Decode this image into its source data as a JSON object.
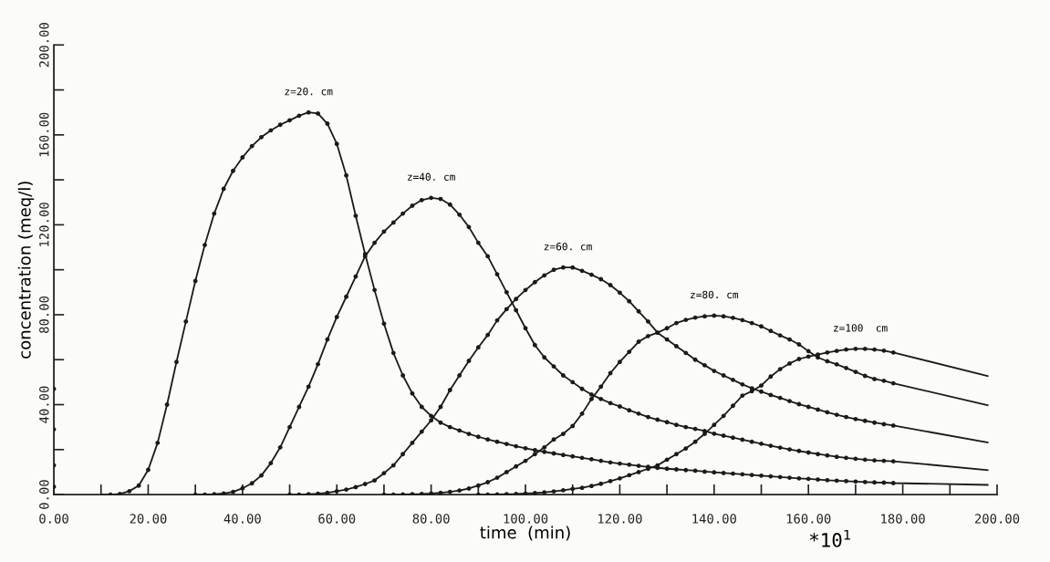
{
  "chart_data": {
    "type": "line",
    "xlabel": "time  (min)",
    "ylabel": "concentration (meq/l)",
    "xlim": [
      0,
      200
    ],
    "ylim": [
      0,
      200
    ],
    "xticks": [
      {
        "value": 0,
        "label": "0.00"
      },
      {
        "value": 10,
        "label": null
      },
      {
        "value": 20,
        "label": "20.00"
      },
      {
        "value": 30,
        "label": null
      },
      {
        "value": 40,
        "label": "40.00"
      },
      {
        "value": 50,
        "label": null
      },
      {
        "value": 60,
        "label": "60.00"
      },
      {
        "value": 70,
        "label": null
      },
      {
        "value": 80,
        "label": "80.00"
      },
      {
        "value": 90,
        "label": null
      },
      {
        "value": 100,
        "label": "100.00"
      },
      {
        "value": 110,
        "label": null
      },
      {
        "value": 120,
        "label": "120.00"
      },
      {
        "value": 130,
        "label": null
      },
      {
        "value": 140,
        "label": "140.00"
      },
      {
        "value": 150,
        "label": null
      },
      {
        "value": 160,
        "label": "160.00"
      },
      {
        "value": 170,
        "label": null
      },
      {
        "value": 180,
        "label": "180.00"
      },
      {
        "value": 190,
        "label": null
      },
      {
        "value": 200,
        "label": "200.00"
      }
    ],
    "yticks": [
      {
        "value": 0,
        "label": "0.00"
      },
      {
        "value": 20,
        "label": null
      },
      {
        "value": 40,
        "label": "40.00"
      },
      {
        "value": 60,
        "label": null
      },
      {
        "value": 80,
        "label": "80.00"
      },
      {
        "value": 100,
        "label": null
      },
      {
        "value": 120,
        "label": "120.00"
      },
      {
        "value": 140,
        "label": null
      },
      {
        "value": 160,
        "label": "160.00"
      },
      {
        "value": 180,
        "label": null
      },
      {
        "value": 200,
        "label": "200.00"
      }
    ],
    "grid": false,
    "annotations": [
      {
        "text": "z=20. cm",
        "x": 54,
        "y": 170
      },
      {
        "text": "z=40. cm",
        "x": 80,
        "y": 132
      },
      {
        "text": "z=60. cm",
        "x": 109,
        "y": 101
      },
      {
        "text": "z=80. cm",
        "x": 140,
        "y": 79.6
      },
      {
        "text": "z=100  cm",
        "x": 171,
        "y": 64.8
      },
      "*10$^{1}$"
    ],
    "series": [
      {
        "color": "#1a1a1a",
        "x": [
          10,
          12,
          14,
          16,
          18,
          20,
          22,
          24,
          26,
          28,
          30,
          32,
          34,
          36,
          38,
          40,
          42,
          44,
          46,
          48,
          50,
          52,
          54,
          56,
          58,
          60,
          62,
          64,
          66,
          68,
          70,
          72,
          74,
          76,
          78,
          80,
          82,
          84,
          86,
          88,
          90,
          92,
          94,
          96,
          98,
          100,
          102,
          104,
          106,
          108,
          110,
          112,
          114,
          116,
          118,
          120,
          122,
          124,
          126,
          128,
          130,
          132,
          134,
          136,
          138,
          140,
          142,
          144,
          146,
          148,
          150,
          152,
          154,
          156,
          158,
          160,
          162,
          164,
          166,
          168,
          170,
          172,
          174,
          176,
          178,
          198
        ],
        "values": [
          0,
          0,
          0.3,
          1.5,
          4,
          11,
          23,
          40,
          59,
          77,
          95,
          111,
          125,
          136,
          144,
          150,
          155,
          159,
          162,
          164.5,
          166.5,
          168.5,
          170,
          169.5,
          165,
          156,
          142,
          124,
          107,
          91,
          76,
          63,
          53,
          45,
          39,
          35,
          32,
          30,
          28.5,
          27,
          25.7,
          24.5,
          23.5,
          22.5,
          21.5,
          20.6,
          19.8,
          19,
          18.3,
          17.6,
          17,
          16.3,
          15.7,
          15,
          14.3,
          13.8,
          13.3,
          12.8,
          12.3,
          11.9,
          11.5,
          11.2,
          10.9,
          10.6,
          10.2,
          9.9,
          9.6,
          9.3,
          9,
          8.7,
          8.4,
          8.1,
          7.8,
          7.5,
          7.2,
          7,
          6.7,
          6.4,
          6.2,
          6,
          5.8,
          5.6,
          5.4,
          5.3,
          5.1,
          4.3
        ]
      },
      {
        "type": "scatter",
        "color": "#1a1a1a",
        "marker": "circle",
        "x": [
          12,
          14,
          16,
          18,
          20,
          22,
          24,
          26,
          28,
          30,
          32,
          34,
          36,
          38,
          40,
          42,
          44,
          46,
          48,
          50,
          52,
          54,
          56,
          58,
          60,
          62,
          64,
          66,
          68,
          70,
          72,
          74,
          76,
          78,
          80,
          82,
          84,
          86,
          88,
          90,
          92,
          94,
          96,
          98,
          100,
          102,
          104,
          106,
          108,
          110,
          112,
          114,
          116,
          118,
          120,
          122,
          124,
          126,
          128,
          130,
          132,
          134,
          136,
          138,
          140,
          142,
          144,
          146,
          148,
          150,
          152,
          154,
          156,
          158,
          160,
          162,
          164,
          166,
          168,
          170,
          172,
          174,
          176,
          178
        ],
        "values": [
          0,
          0.3,
          1.5,
          4,
          11,
          23,
          40,
          59,
          77,
          95,
          111,
          125,
          136,
          144,
          150,
          155,
          159,
          162,
          164.5,
          166.5,
          168.5,
          170,
          169.5,
          165,
          156,
          142,
          124,
          107,
          91,
          76,
          63,
          53,
          45,
          39,
          35,
          32,
          30,
          28.5,
          27,
          25.7,
          24.5,
          23.5,
          22.5,
          21.5,
          20.6,
          19.8,
          19,
          18.3,
          17.6,
          17,
          16.3,
          15.7,
          15,
          14.3,
          13.8,
          13.3,
          12.8,
          12.3,
          11.9,
          11.5,
          11.2,
          10.9,
          10.6,
          10.2,
          9.9,
          9.6,
          9.3,
          9,
          8.7,
          8.4,
          8.1,
          7.8,
          7.5,
          7.2,
          7,
          6.7,
          6.4,
          6.2,
          6,
          5.8,
          5.6,
          5.4,
          5.3,
          5.1
        ]
      },
      {
        "color": "#1a1a1a",
        "x": [
          30,
          32,
          34,
          36,
          38,
          40,
          42,
          44,
          46,
          48,
          50,
          52,
          54,
          56,
          58,
          60,
          62,
          64,
          66,
          68,
          70,
          72,
          74,
          76,
          78,
          80,
          82,
          84,
          86,
          88,
          90,
          92,
          94,
          96,
          98,
          100,
          102,
          104,
          106,
          108,
          110,
          112,
          114,
          116,
          118,
          120,
          122,
          124,
          126,
          128,
          130,
          132,
          134,
          136,
          138,
          140,
          142,
          144,
          146,
          148,
          150,
          152,
          154,
          156,
          158,
          160,
          162,
          164,
          166,
          168,
          170,
          172,
          174,
          176,
          178,
          198
        ],
        "values": [
          0,
          0,
          0.2,
          0.5,
          1.2,
          2.8,
          5,
          8.5,
          14,
          21,
          30,
          39,
          48,
          58,
          69,
          79,
          88,
          97,
          106,
          112,
          117,
          121,
          125,
          128.5,
          131,
          132,
          131.5,
          129,
          124.5,
          119,
          112,
          106,
          98,
          90,
          82,
          74,
          66.5,
          61,
          57,
          53,
          50,
          47,
          44.5,
          42.5,
          40.7,
          39.2,
          37.5,
          36,
          34.5,
          33.3,
          32.2,
          31,
          30,
          29.2,
          28.3,
          27.1,
          26.2,
          25.3,
          24.4,
          23.5,
          22.6,
          21.7,
          20.9,
          20.1,
          19.4,
          18.7,
          18,
          17.4,
          16.8,
          16.3,
          15.9,
          15.5,
          15.2,
          15,
          14.8,
          10.9
        ]
      },
      {
        "type": "scatter",
        "color": "#1a1a1a",
        "marker": "circle",
        "x": [
          30,
          32,
          34,
          36,
          38,
          40,
          42,
          44,
          46,
          48,
          50,
          52,
          54,
          56,
          58,
          60,
          62,
          64,
          66,
          68,
          70,
          72,
          74,
          76,
          78,
          80,
          82,
          84,
          86,
          88,
          90,
          92,
          94,
          96,
          98,
          100,
          102,
          104,
          106,
          108,
          110,
          112,
          114,
          116,
          118,
          120,
          122,
          124,
          126,
          128,
          130,
          132,
          134,
          136,
          138,
          140,
          142,
          144,
          146,
          148,
          150,
          152,
          154,
          156,
          158,
          160,
          162,
          164,
          166,
          168,
          170,
          172,
          174,
          176,
          178
        ],
        "values": [
          0,
          0,
          0.2,
          0.5,
          1.2,
          2.8,
          5,
          8.5,
          14,
          21,
          30,
          39,
          48,
          58,
          69,
          79,
          88,
          97,
          106,
          112,
          117,
          121,
          125,
          128.5,
          131,
          132,
          131.5,
          129,
          124.5,
          119,
          112,
          106,
          98,
          90,
          82,
          74,
          66.5,
          61,
          57,
          53,
          50,
          47,
          44.5,
          42.5,
          40.7,
          39.2,
          37.5,
          36,
          34.5,
          33.3,
          32.2,
          31,
          30,
          29.2,
          28.3,
          27.1,
          26.2,
          25.3,
          24.4,
          23.5,
          22.6,
          21.7,
          20.9,
          20.1,
          19.4,
          18.7,
          18,
          17.4,
          16.8,
          16.3,
          15.9,
          15.5,
          15.2,
          15,
          14.8
        ]
      },
      {
        "color": "#1a1a1a",
        "x": [
          50,
          52,
          54,
          56,
          58,
          60,
          62,
          64,
          66,
          68,
          70,
          72,
          74,
          76,
          78,
          80,
          82,
          84,
          86,
          88,
          90,
          92,
          94,
          96,
          98,
          100,
          102,
          104,
          106,
          108,
          110,
          112,
          114,
          116,
          118,
          120,
          122,
          124,
          126,
          128,
          130,
          132,
          134,
          136,
          138,
          140,
          142,
          144,
          146,
          148,
          150,
          152,
          154,
          156,
          158,
          160,
          162,
          164,
          166,
          168,
          170,
          172,
          174,
          176,
          178,
          198
        ],
        "values": [
          0,
          0,
          0.2,
          0.4,
          0.8,
          1.5,
          2.2,
          3.3,
          4.7,
          6.3,
          9.5,
          13,
          18,
          23,
          28,
          33,
          39,
          46.5,
          53,
          59.5,
          65.5,
          71,
          77.5,
          82.5,
          87,
          91,
          94.5,
          97.5,
          100,
          101,
          101,
          99.5,
          97.8,
          95.8,
          93.2,
          89.8,
          86,
          81.5,
          77,
          72,
          69,
          66,
          63,
          60,
          57.5,
          55,
          53,
          51,
          49,
          47.3,
          45.8,
          44.3,
          43,
          41.6,
          40.2,
          39,
          37.8,
          36.6,
          35.5,
          34.5,
          33.6,
          32.8,
          32,
          31.3,
          30.7,
          23.2
        ]
      },
      {
        "type": "scatter",
        "color": "#1a1a1a",
        "marker": "circle",
        "x": [
          50,
          52,
          54,
          56,
          58,
          60,
          62,
          64,
          66,
          68,
          70,
          72,
          74,
          76,
          78,
          80,
          82,
          84,
          86,
          88,
          90,
          92,
          94,
          96,
          98,
          100,
          102,
          104,
          106,
          108,
          110,
          112,
          114,
          116,
          118,
          120,
          122,
          124,
          126,
          128,
          130,
          132,
          134,
          136,
          138,
          140,
          142,
          144,
          146,
          148,
          150,
          152,
          154,
          156,
          158,
          160,
          162,
          164,
          166,
          168,
          170,
          172,
          174,
          176,
          178
        ],
        "values": [
          0,
          0,
          0.2,
          0.4,
          0.8,
          1.5,
          2.2,
          3.3,
          4.7,
          6.3,
          9.5,
          13,
          18,
          23,
          28,
          33,
          39,
          46.5,
          53,
          59.5,
          65.5,
          71,
          77.5,
          82.5,
          87,
          91,
          94.5,
          97.5,
          100,
          101,
          101,
          99.5,
          97.8,
          95.8,
          93.2,
          89.8,
          86,
          81.5,
          77,
          72,
          69,
          66,
          63,
          60,
          57.5,
          55,
          53,
          51,
          49,
          47.3,
          45.8,
          44.3,
          43,
          41.6,
          40.2,
          39,
          37.8,
          36.6,
          35.5,
          34.5,
          33.6,
          32.8,
          32,
          31.3,
          30.7
        ]
      },
      {
        "color": "#1a1a1a",
        "x": [
          70,
          72,
          74,
          76,
          78,
          80,
          82,
          84,
          86,
          88,
          90,
          92,
          94,
          96,
          98,
          100,
          102,
          104,
          106,
          108,
          110,
          112,
          114,
          116,
          118,
          120,
          122,
          124,
          126,
          128,
          130,
          132,
          134,
          136,
          138,
          140,
          142,
          144,
          146,
          148,
          150,
          152,
          154,
          156,
          158,
          160,
          162,
          164,
          166,
          168,
          170,
          172,
          174,
          176,
          178,
          198
        ],
        "values": [
          0,
          0,
          0.1,
          0.2,
          0.3,
          0.5,
          0.8,
          1.2,
          1.8,
          2.7,
          4,
          5.5,
          7.5,
          10,
          12.5,
          15,
          18,
          21,
          24.5,
          27,
          30.5,
          36,
          42.5,
          48,
          54,
          59,
          63.5,
          68,
          70.5,
          72,
          74,
          76.3,
          77.7,
          78.7,
          79.3,
          79.6,
          79.3,
          78.6,
          77.6,
          76.3,
          74.8,
          72.8,
          70.8,
          69,
          66.8,
          63.8,
          61,
          59.3,
          57.9,
          56.3,
          54.6,
          52.8,
          51.4,
          50.6,
          49.5,
          39.7
        ]
      },
      {
        "type": "scatter",
        "color": "#1a1a1a",
        "marker": "circle",
        "x": [
          70,
          72,
          74,
          76,
          78,
          80,
          82,
          84,
          86,
          88,
          90,
          92,
          94,
          96,
          98,
          100,
          102,
          104,
          106,
          108,
          110,
          112,
          114,
          116,
          118,
          120,
          122,
          124,
          126,
          128,
          130,
          132,
          134,
          136,
          138,
          140,
          142,
          144,
          146,
          148,
          150,
          152,
          154,
          156,
          158,
          160,
          162,
          164,
          166,
          168,
          170,
          172,
          174,
          176,
          178
        ],
        "values": [
          0,
          0,
          0.1,
          0.2,
          0.3,
          0.5,
          0.8,
          1.2,
          1.8,
          2.7,
          4,
          5.5,
          7.5,
          10,
          12.5,
          15,
          18,
          21,
          24.5,
          27,
          30.5,
          36,
          42.5,
          48,
          54,
          59,
          63.5,
          68,
          70.5,
          72,
          74,
          76.3,
          77.7,
          78.7,
          79.3,
          79.6,
          79.3,
          78.6,
          77.6,
          76.3,
          74.8,
          72.8,
          70.8,
          69,
          66.8,
          63.8,
          61,
          59.3,
          57.9,
          56.3,
          54.6,
          52.8,
          51.4,
          50.6,
          49.5
        ]
      },
      {
        "color": "#1a1a1a",
        "x": [
          90,
          92,
          94,
          96,
          98,
          100,
          102,
          104,
          106,
          108,
          110,
          112,
          114,
          116,
          118,
          120,
          122,
          124,
          126,
          128,
          130,
          132,
          134,
          136,
          138,
          140,
          142,
          144,
          146,
          148,
          150,
          152,
          154,
          156,
          158,
          160,
          162,
          164,
          166,
          168,
          170,
          172,
          174,
          176,
          178,
          198
        ],
        "values": [
          0,
          0,
          0.1,
          0.2,
          0.3,
          0.5,
          0.7,
          1,
          1.4,
          1.9,
          2.5,
          3,
          3.8,
          4.8,
          6,
          7.2,
          8.6,
          10,
          11.5,
          13,
          15.5,
          18,
          20.5,
          23.5,
          27,
          31,
          35,
          39.5,
          44,
          46,
          48.5,
          52.5,
          55.8,
          58.3,
          60.3,
          61.4,
          62.3,
          63.2,
          63.9,
          64.5,
          64.8,
          64.8,
          64.5,
          64,
          63.2,
          52.7
        ]
      },
      {
        "type": "scatter",
        "color": "#1a1a1a",
        "marker": "circle",
        "x": [
          90,
          92,
          94,
          96,
          98,
          100,
          102,
          104,
          106,
          108,
          110,
          112,
          114,
          116,
          118,
          120,
          122,
          124,
          126,
          128,
          130,
          132,
          134,
          136,
          138,
          140,
          142,
          144,
          146,
          148,
          150,
          152,
          154,
          156,
          158,
          160,
          162,
          164,
          166,
          168,
          170,
          172,
          174,
          176,
          178
        ],
        "values": [
          0,
          0,
          0.1,
          0.2,
          0.3,
          0.5,
          0.7,
          1,
          1.4,
          1.9,
          2.5,
          3,
          3.8,
          4.8,
          6,
          7.2,
          8.6,
          10,
          11.5,
          13,
          15.5,
          18,
          20.5,
          23.5,
          27,
          31,
          35,
          39.5,
          44,
          46,
          48.5,
          52.5,
          55.8,
          58.3,
          60.3,
          61.4,
          62.3,
          63.2,
          63.9,
          64.5,
          64.8,
          64.8,
          64.5,
          64,
          63.2
        ]
      },
      {
        "type": "scatter",
        "color": "#1a1a1a",
        "marker": "circle",
        "x": [
          0,
          0,
          0,
          0
        ],
        "values": [
          47,
          29,
          13,
          3.5
        ]
      }
    ]
  }
}
